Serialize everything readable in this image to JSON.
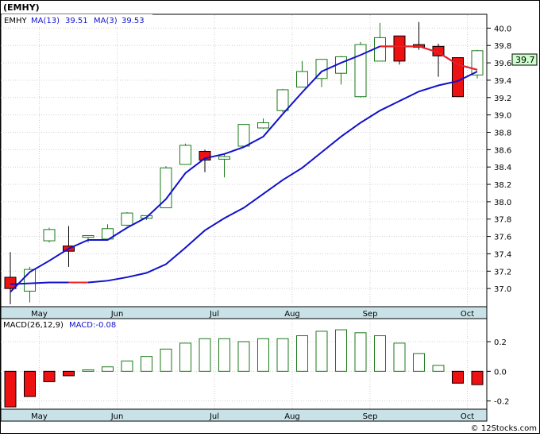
{
  "ticker_label": "(EMHY)",
  "legend": {
    "ticker": "EMHY",
    "ma13_label": "MA(13)",
    "ma13_value": "39.51",
    "ma3_label": "MA(3)",
    "ma3_value": "39.53"
  },
  "macd_legend": {
    "params": "MACD(26,12,9)",
    "value": "MACD:-0.08"
  },
  "price_badge": "39.7",
  "watermark": "© 12Stocks.com",
  "colors": {
    "up_outline": "#1a7a1a",
    "down_fill": "#ee1111",
    "ma_line": "#1111cc",
    "ma_down": "#ee2222",
    "axis_bg": "#c9e2e8",
    "badge_bg": "#ccffcc",
    "grid": "#d0d0d0"
  },
  "chart_data": [
    {
      "type": "candlestick",
      "title": "(EMHY)",
      "x_tick_labels": [
        "May",
        "Jun",
        "Jul",
        "Aug",
        "Sep",
        "Oct"
      ],
      "x_tick_bar_index": [
        1,
        5,
        10,
        14,
        18,
        23
      ],
      "y_tick_labels": [
        "37.0",
        "37.2",
        "37.4",
        "37.6",
        "37.8",
        "38.0",
        "38.2",
        "38.4",
        "38.6",
        "38.8",
        "39.0",
        "39.2",
        "39.4",
        "39.6",
        "39.8",
        "40.0"
      ],
      "ylim": [
        36.8,
        40.15
      ],
      "grid": true,
      "candles": [
        {
          "o": 37.13,
          "h": 37.42,
          "l": 36.82,
          "c": 37.0
        },
        {
          "o": 36.97,
          "h": 37.25,
          "l": 36.84,
          "c": 37.22
        },
        {
          "o": 37.55,
          "h": 37.7,
          "l": 37.53,
          "c": 37.68
        },
        {
          "o": 37.49,
          "h": 37.72,
          "l": 37.25,
          "c": 37.43
        },
        {
          "o": 37.59,
          "h": 37.61,
          "l": 37.53,
          "c": 37.61
        },
        {
          "o": 37.57,
          "h": 37.74,
          "l": 37.56,
          "c": 37.69
        },
        {
          "o": 37.73,
          "h": 37.88,
          "l": 37.72,
          "c": 37.87
        },
        {
          "o": 37.81,
          "h": 37.84,
          "l": 37.79,
          "c": 37.84
        },
        {
          "o": 37.93,
          "h": 38.41,
          "l": 37.93,
          "c": 38.39
        },
        {
          "o": 38.43,
          "h": 38.67,
          "l": 38.43,
          "c": 38.65
        },
        {
          "o": 38.58,
          "h": 38.6,
          "l": 38.34,
          "c": 38.48
        },
        {
          "o": 38.49,
          "h": 38.55,
          "l": 38.28,
          "c": 38.52
        },
        {
          "o": 38.64,
          "h": 38.89,
          "l": 38.62,
          "c": 38.89
        },
        {
          "o": 38.85,
          "h": 38.96,
          "l": 38.84,
          "c": 38.91
        },
        {
          "o": 39.05,
          "h": 39.3,
          "l": 39.03,
          "c": 39.29
        },
        {
          "o": 39.32,
          "h": 39.62,
          "l": 39.32,
          "c": 39.5
        },
        {
          "o": 39.42,
          "h": 39.62,
          "l": 39.32,
          "c": 39.64
        },
        {
          "o": 39.48,
          "h": 39.68,
          "l": 39.35,
          "c": 39.67
        },
        {
          "o": 39.21,
          "h": 39.84,
          "l": 39.2,
          "c": 39.81
        },
        {
          "o": 39.62,
          "h": 40.06,
          "l": 39.62,
          "c": 39.89
        },
        {
          "o": 39.91,
          "h": 39.91,
          "l": 39.58,
          "c": 39.62
        },
        {
          "o": 39.81,
          "h": 40.07,
          "l": 39.75,
          "c": 39.78
        },
        {
          "o": 39.79,
          "h": 39.82,
          "l": 39.44,
          "c": 39.68
        },
        {
          "o": 39.66,
          "h": 39.66,
          "l": 39.21,
          "c": 39.21
        },
        {
          "o": 39.46,
          "h": 39.75,
          "l": 39.42,
          "c": 39.74
        }
      ],
      "series": [
        {
          "name": "MA(13)",
          "values": [
            37.05,
            37.06,
            37.07,
            37.07,
            37.07,
            37.09,
            37.13,
            37.18,
            37.28,
            37.47,
            37.67,
            37.81,
            37.93,
            38.09,
            38.25,
            38.39,
            38.57,
            38.75,
            38.91,
            39.05,
            39.16,
            39.27,
            39.34,
            39.39,
            39.5
          ],
          "down_segments": [
            [
              3,
              4
            ]
          ]
        },
        {
          "name": "MA(3)",
          "values": [
            36.96,
            37.19,
            37.32,
            37.46,
            37.56,
            37.56,
            37.7,
            37.82,
            38.03,
            38.33,
            38.5,
            38.55,
            38.63,
            38.75,
            39.01,
            39.26,
            39.5,
            39.6,
            39.69,
            39.79,
            39.79,
            39.79,
            39.72,
            39.58,
            39.52
          ],
          "down_segments": [
            [
              19,
              20
            ],
            [
              20,
              21
            ],
            [
              21,
              22
            ],
            [
              22,
              23
            ],
            [
              23,
              24
            ]
          ]
        }
      ]
    },
    {
      "type": "bar",
      "title": "MACD(26,12,9)",
      "x_tick_labels": [
        "May",
        "Jun",
        "Jul",
        "Aug",
        "Sep",
        "Oct"
      ],
      "x_tick_bar_index": [
        1,
        5,
        10,
        14,
        18,
        23
      ],
      "y_tick_labels": [
        "-0.2",
        "0.0",
        "0.2"
      ],
      "ylim": [
        -0.25,
        0.35
      ],
      "values": [
        -0.24,
        -0.17,
        -0.07,
        -0.03,
        0.01,
        0.03,
        0.07,
        0.1,
        0.15,
        0.19,
        0.22,
        0.22,
        0.2,
        0.22,
        0.22,
        0.24,
        0.27,
        0.28,
        0.26,
        0.24,
        0.19,
        0.12,
        0.04,
        -0.08,
        -0.09
      ]
    }
  ]
}
